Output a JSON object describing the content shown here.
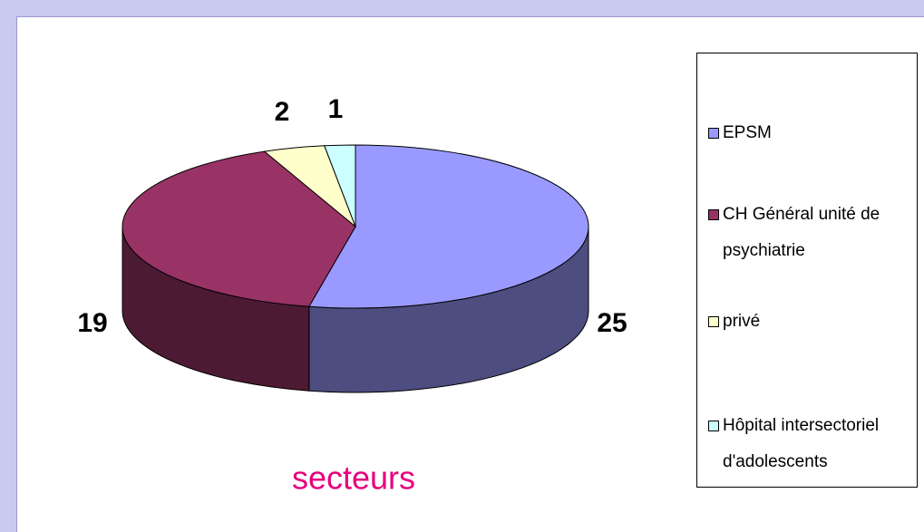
{
  "chart_data": {
    "type": "pie3d",
    "title": "secteurs",
    "categories": [
      "EPSM",
      "CH Général unité de psychiatrie",
      "privé",
      "Hôpital intersectoriel d'adolescents"
    ],
    "values": [
      25,
      19,
      2,
      1
    ],
    "colors": [
      "#9999ff",
      "#993366",
      "#ffffcc",
      "#ccffff"
    ]
  }
}
